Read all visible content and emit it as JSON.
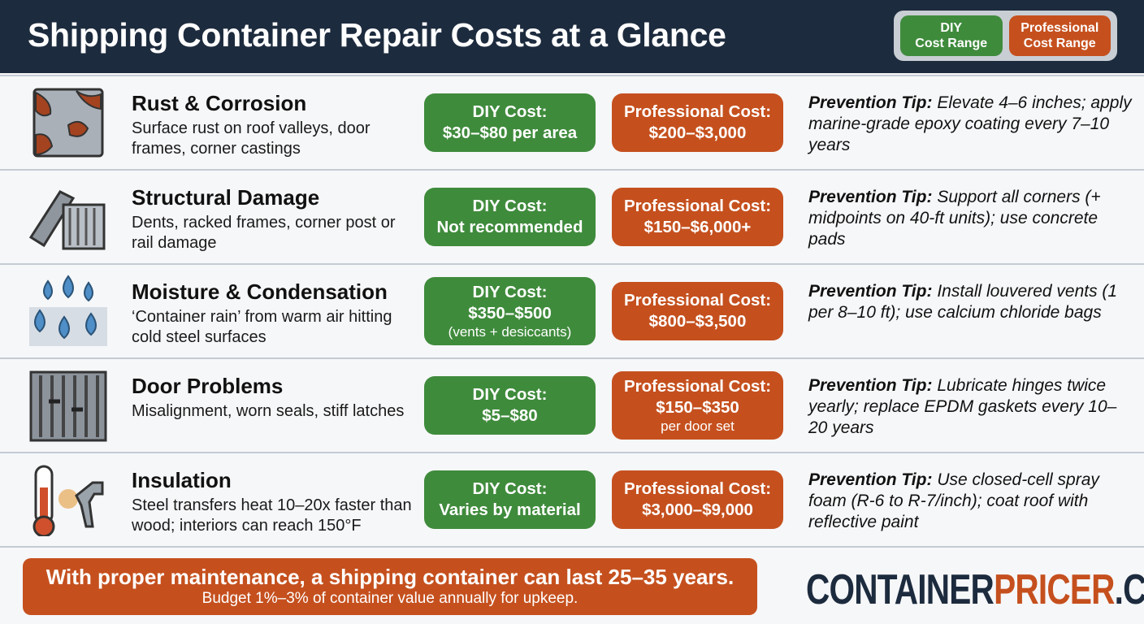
{
  "header": {
    "title": "Shipping Container Repair Costs at a Glance",
    "legend": [
      {
        "lines": [
          "DIY",
          "Cost Range"
        ]
      },
      {
        "lines": [
          "Professional",
          "Cost Range"
        ]
      }
    ]
  },
  "rows": [
    {
      "title": "Rust & Corrosion",
      "description": "Surface rust on roof valleys, door frames, corner castings",
      "diy": {
        "label": "DIY Cost:",
        "value": "$30–$80 per area"
      },
      "pro": {
        "label": "Professional Cost:",
        "value": "$200–$3,000"
      },
      "tip": {
        "label": "Prevention Tip:",
        "text": "Elevate 4–6 inches; apply marine-grade epoxy coating every 7–10 years"
      }
    },
    {
      "title": "Structural Damage",
      "description": "Dents, racked frames, corner post or rail damage",
      "diy": {
        "label": "DIY Cost:",
        "value": "Not recommended"
      },
      "pro": {
        "label": "Professional Cost:",
        "value": "$150–$6,000+"
      },
      "tip": {
        "label": "Prevention Tip:",
        "text": "Support all corners (+ midpoints on 40-ft units); use concrete pads"
      }
    },
    {
      "title": "Moisture & Condensation",
      "description": "‘Container rain’ from warm air hitting cold steel surfaces",
      "diy": {
        "label": "DIY Cost:",
        "value": "$350–$500",
        "note": "(vents + desiccants)"
      },
      "pro": {
        "label": "Professional Cost:",
        "value": "$800–$3,500"
      },
      "tip": {
        "label": "Prevention Tip:",
        "text": "Install louvered vents (1 per 8–10 ft); use calcium chloride bags"
      }
    },
    {
      "title": "Door Problems",
      "description": "Misalignment, worn seals, stiff latches",
      "diy": {
        "label": "DIY Cost:",
        "value": "$5–$80"
      },
      "pro": {
        "label": "Professional Cost:",
        "value": "$150–$350",
        "note": "per door set"
      },
      "tip": {
        "label": "Prevention Tip:",
        "text": "Lubricate hinges twice yearly; replace EPDM gaskets every 10–20 years"
      }
    },
    {
      "title": "Insulation",
      "description": "Steel transfers heat 10–20x faster than wood; interiors can reach 150°F",
      "diy": {
        "label": "DIY Cost:",
        "value": "Varies by material"
      },
      "pro": {
        "label": "Professional Cost:",
        "value": "$3,000–$9,000"
      },
      "tip": {
        "label": "Prevention Tip:",
        "text": "Use closed-cell spray foam (R-6 to R-7/inch); coat roof with reflective paint"
      }
    }
  ],
  "footer": {
    "text": "With proper maintenance, a shipping container can last 25–35 years.",
    "subtext": "Budget 1%–3% of container value annually for upkeep."
  },
  "logo": {
    "parts": [
      "CONTAINER",
      "PRICER",
      ".COM"
    ]
  }
}
